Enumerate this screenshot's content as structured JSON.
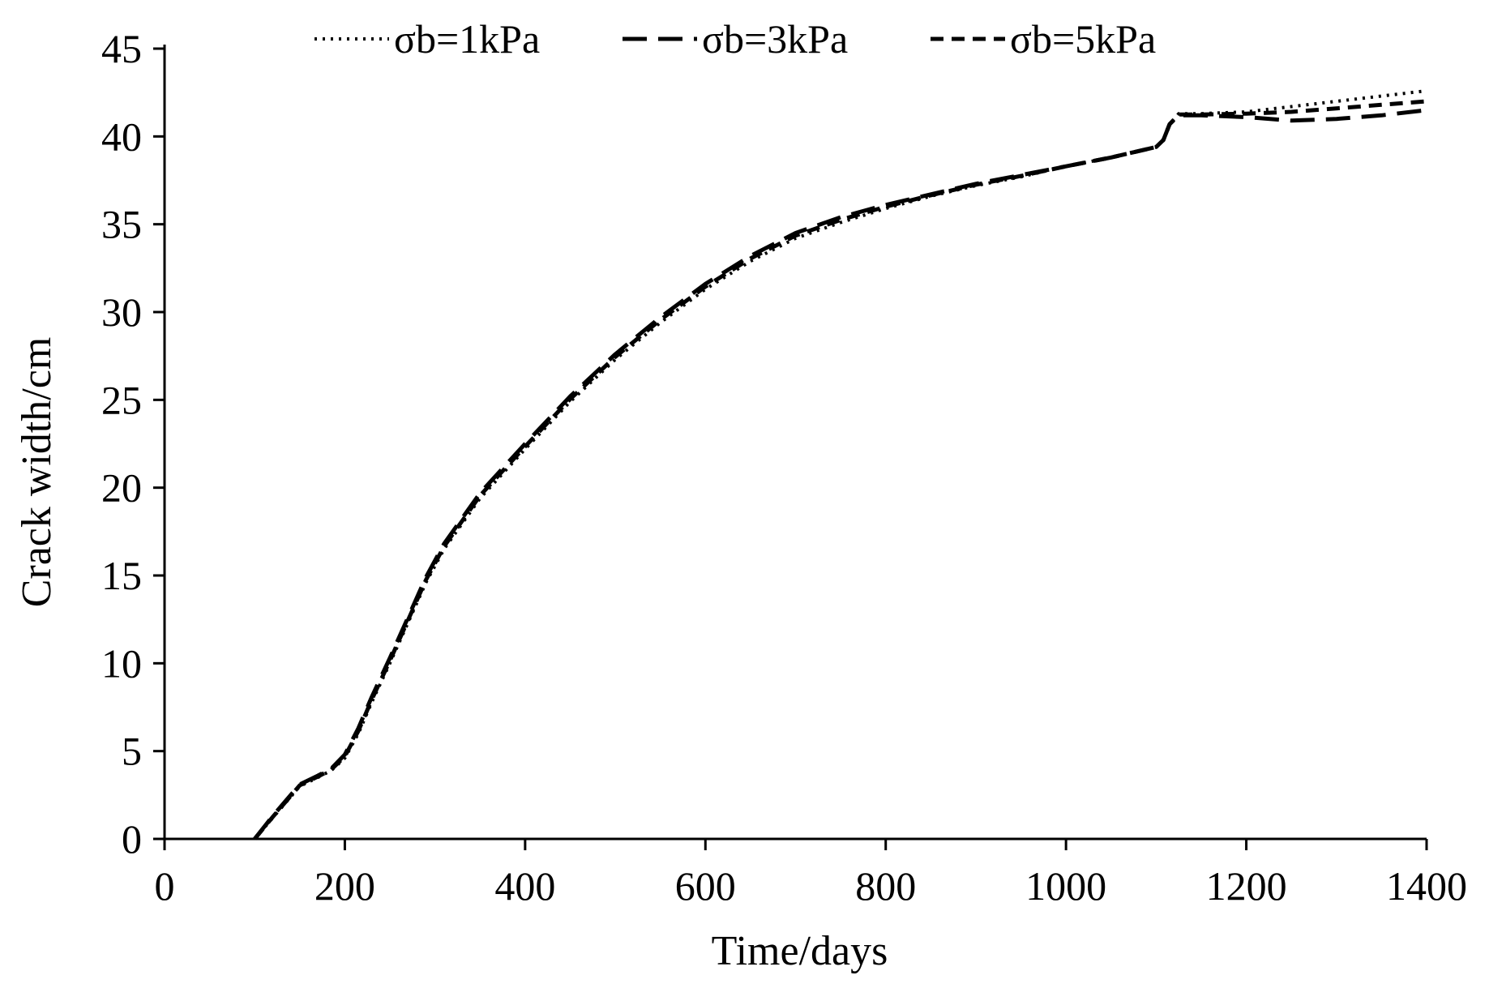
{
  "chart_data": {
    "type": "line",
    "title": "",
    "xlabel": "Time/days",
    "ylabel": "Crack width/cm",
    "xlim": [
      0,
      1400
    ],
    "ylim": [
      0,
      45
    ],
    "xticks": [
      0,
      200,
      400,
      600,
      800,
      1000,
      1200,
      1400
    ],
    "yticks": [
      0,
      5,
      10,
      15,
      20,
      25,
      30,
      35,
      40,
      45
    ],
    "grid": false,
    "legend_position": "top",
    "series": [
      {
        "name": "σb=1kPa",
        "line_style": "dotted",
        "color": "#000000",
        "points": [
          [
            100,
            0
          ],
          [
            120,
            1.2
          ],
          [
            150,
            3.0
          ],
          [
            170,
            3.5
          ],
          [
            185,
            3.9
          ],
          [
            200,
            4.6
          ],
          [
            215,
            6.0
          ],
          [
            230,
            7.8
          ],
          [
            250,
            10.0
          ],
          [
            270,
            12.3
          ],
          [
            290,
            14.6
          ],
          [
            310,
            16.5
          ],
          [
            350,
            19.4
          ],
          [
            400,
            22.2
          ],
          [
            450,
            24.9
          ],
          [
            500,
            27.3
          ],
          [
            550,
            29.4
          ],
          [
            600,
            31.3
          ],
          [
            650,
            32.9
          ],
          [
            700,
            34.2
          ],
          [
            750,
            35.1
          ],
          [
            800,
            35.9
          ],
          [
            850,
            36.6
          ],
          [
            900,
            37.2
          ],
          [
            950,
            37.7
          ],
          [
            1000,
            38.3
          ],
          [
            1050,
            38.8
          ],
          [
            1100,
            39.4
          ],
          [
            1108,
            39.8
          ],
          [
            1115,
            40.7
          ],
          [
            1125,
            41.3
          ],
          [
            1150,
            41.3
          ],
          [
            1200,
            41.4
          ],
          [
            1250,
            41.7
          ],
          [
            1300,
            42.0
          ],
          [
            1350,
            42.3
          ],
          [
            1400,
            42.6
          ]
        ]
      },
      {
        "name": "σb=3kPa",
        "line_style": "long-dash",
        "color": "#000000",
        "points": [
          [
            100,
            0
          ],
          [
            120,
            1.3
          ],
          [
            150,
            3.1
          ],
          [
            170,
            3.6
          ],
          [
            185,
            4.0
          ],
          [
            200,
            4.8
          ],
          [
            215,
            6.3
          ],
          [
            230,
            8.1
          ],
          [
            250,
            10.3
          ],
          [
            270,
            12.6
          ],
          [
            290,
            14.9
          ],
          [
            310,
            16.8
          ],
          [
            350,
            19.7
          ],
          [
            400,
            22.5
          ],
          [
            450,
            25.2
          ],
          [
            500,
            27.6
          ],
          [
            550,
            29.7
          ],
          [
            600,
            31.6
          ],
          [
            650,
            33.2
          ],
          [
            700,
            34.5
          ],
          [
            750,
            35.4
          ],
          [
            800,
            36.1
          ],
          [
            850,
            36.7
          ],
          [
            900,
            37.3
          ],
          [
            950,
            37.8
          ],
          [
            1000,
            38.3
          ],
          [
            1050,
            38.8
          ],
          [
            1100,
            39.4
          ],
          [
            1108,
            39.8
          ],
          [
            1115,
            40.7
          ],
          [
            1125,
            41.2
          ],
          [
            1150,
            41.2
          ],
          [
            1200,
            41.1
          ],
          [
            1250,
            40.9
          ],
          [
            1300,
            41.0
          ],
          [
            1350,
            41.2
          ],
          [
            1400,
            41.5
          ]
        ]
      },
      {
        "name": "σb=5kPa",
        "line_style": "short-dash",
        "color": "#000000",
        "points": [
          [
            100,
            0
          ],
          [
            120,
            1.25
          ],
          [
            150,
            3.05
          ],
          [
            170,
            3.55
          ],
          [
            185,
            3.95
          ],
          [
            200,
            4.7
          ],
          [
            215,
            6.15
          ],
          [
            230,
            7.95
          ],
          [
            250,
            10.15
          ],
          [
            270,
            12.45
          ],
          [
            290,
            14.75
          ],
          [
            310,
            16.65
          ],
          [
            350,
            19.55
          ],
          [
            400,
            22.35
          ],
          [
            450,
            25.05
          ],
          [
            500,
            27.45
          ],
          [
            550,
            29.55
          ],
          [
            600,
            31.45
          ],
          [
            650,
            33.05
          ],
          [
            700,
            34.35
          ],
          [
            750,
            35.25
          ],
          [
            800,
            36.0
          ],
          [
            850,
            36.65
          ],
          [
            900,
            37.25
          ],
          [
            950,
            37.75
          ],
          [
            1000,
            38.3
          ],
          [
            1050,
            38.8
          ],
          [
            1100,
            39.4
          ],
          [
            1108,
            39.8
          ],
          [
            1115,
            40.7
          ],
          [
            1125,
            41.25
          ],
          [
            1150,
            41.25
          ],
          [
            1200,
            41.3
          ],
          [
            1250,
            41.4
          ],
          [
            1300,
            41.6
          ],
          [
            1350,
            41.8
          ],
          [
            1400,
            42.0
          ]
        ]
      }
    ]
  }
}
